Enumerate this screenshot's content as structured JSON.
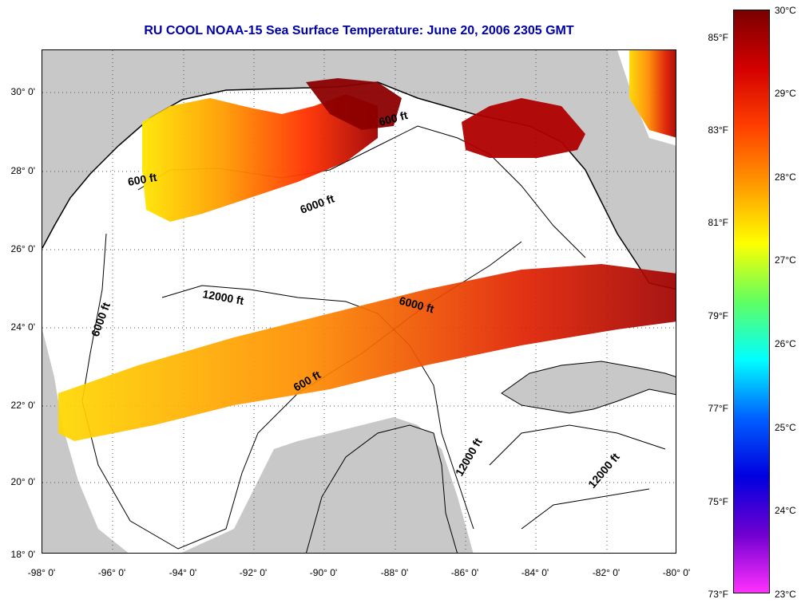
{
  "title": "RU COOL  NOAA-15  Sea Surface Temperature:  June 20, 2006 2305 GMT",
  "map": {
    "region": "Gulf of Mexico",
    "lon_range": [
      -98,
      -80
    ],
    "lat_range": [
      18,
      31
    ],
    "land_color": "#c8c8c8",
    "ocean_color": "#ffffff",
    "gridlines": "dotted",
    "lat_ticks": [
      "30° 0'",
      "28° 0'",
      "26° 0'",
      "24° 0'",
      "22° 0'",
      "20° 0'",
      "18° 0'"
    ],
    "lon_ticks": [
      "-98° 0'",
      "-96° 0'",
      "-94° 0'",
      "-92° 0'",
      "-90° 0'",
      "-88° 0'",
      "-86° 0'",
      "-84° 0'",
      "-82° 0'",
      "-80° 0'"
    ],
    "contour_labels": [
      {
        "text": "600 ft"
      },
      {
        "text": "600 ft"
      },
      {
        "text": "6000 ft"
      },
      {
        "text": "12000 ft"
      },
      {
        "text": "6000 ft"
      },
      {
        "text": "6000 ft"
      },
      {
        "text": "600 ft"
      },
      {
        "text": "12000 ft"
      },
      {
        "text": "12000 ft"
      }
    ]
  },
  "colorbar": {
    "celsius_labels": [
      "30°C",
      "29°C",
      "28°C",
      "27°C",
      "26°C",
      "25°C",
      "24°C",
      "23°C"
    ],
    "fahrenheit_labels": [
      "85°F",
      "83°F",
      "81°F",
      "79°F",
      "77°F",
      "75°F",
      "73°F"
    ],
    "celsius_values": [
      30,
      29,
      28,
      27,
      26,
      25,
      24,
      23
    ],
    "fahrenheit_values": [
      85,
      83,
      81,
      79,
      77,
      75,
      73
    ],
    "range_c": [
      23,
      30
    ],
    "colors_top_to_bottom": [
      "#7a0000",
      "#d40000",
      "#ff4000",
      "#ff9a00",
      "#ffff00",
      "#60ff60",
      "#00ffff",
      "#0060ff",
      "#0000e0",
      "#7000d0",
      "#ff30ff"
    ]
  }
}
